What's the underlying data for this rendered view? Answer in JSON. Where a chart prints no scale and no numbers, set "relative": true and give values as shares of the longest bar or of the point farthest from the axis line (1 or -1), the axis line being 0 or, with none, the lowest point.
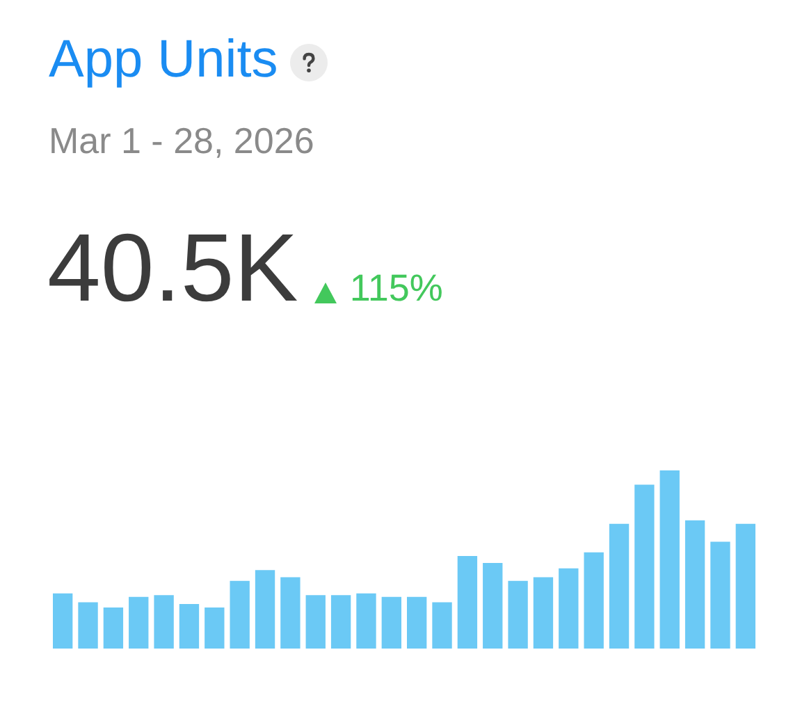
{
  "chart_data": {
    "type": "bar",
    "title": "App Units",
    "subtitle": "Mar 1 - 28, 2026",
    "annotations": [
      "40.5K",
      "115%"
    ],
    "categories": [
      null,
      null,
      null,
      null,
      null,
      null,
      null,
      null,
      null,
      null,
      null,
      null,
      null,
      null,
      null,
      null,
      null,
      null,
      null,
      null,
      null,
      null,
      null,
      null,
      null,
      null,
      null,
      null
    ],
    "values": [
      0.31,
      0.26,
      0.23,
      0.29,
      0.3,
      0.25,
      0.23,
      0.38,
      0.44,
      0.4,
      0.3,
      0.3,
      0.31,
      0.29,
      0.29,
      0.26,
      0.52,
      0.48,
      0.38,
      0.4,
      0.45,
      0.54,
      0.7,
      0.92,
      1,
      0.72,
      0.6,
      0.7
    ],
    "color": "#6bc9f5",
    "relative": true
  }
}
